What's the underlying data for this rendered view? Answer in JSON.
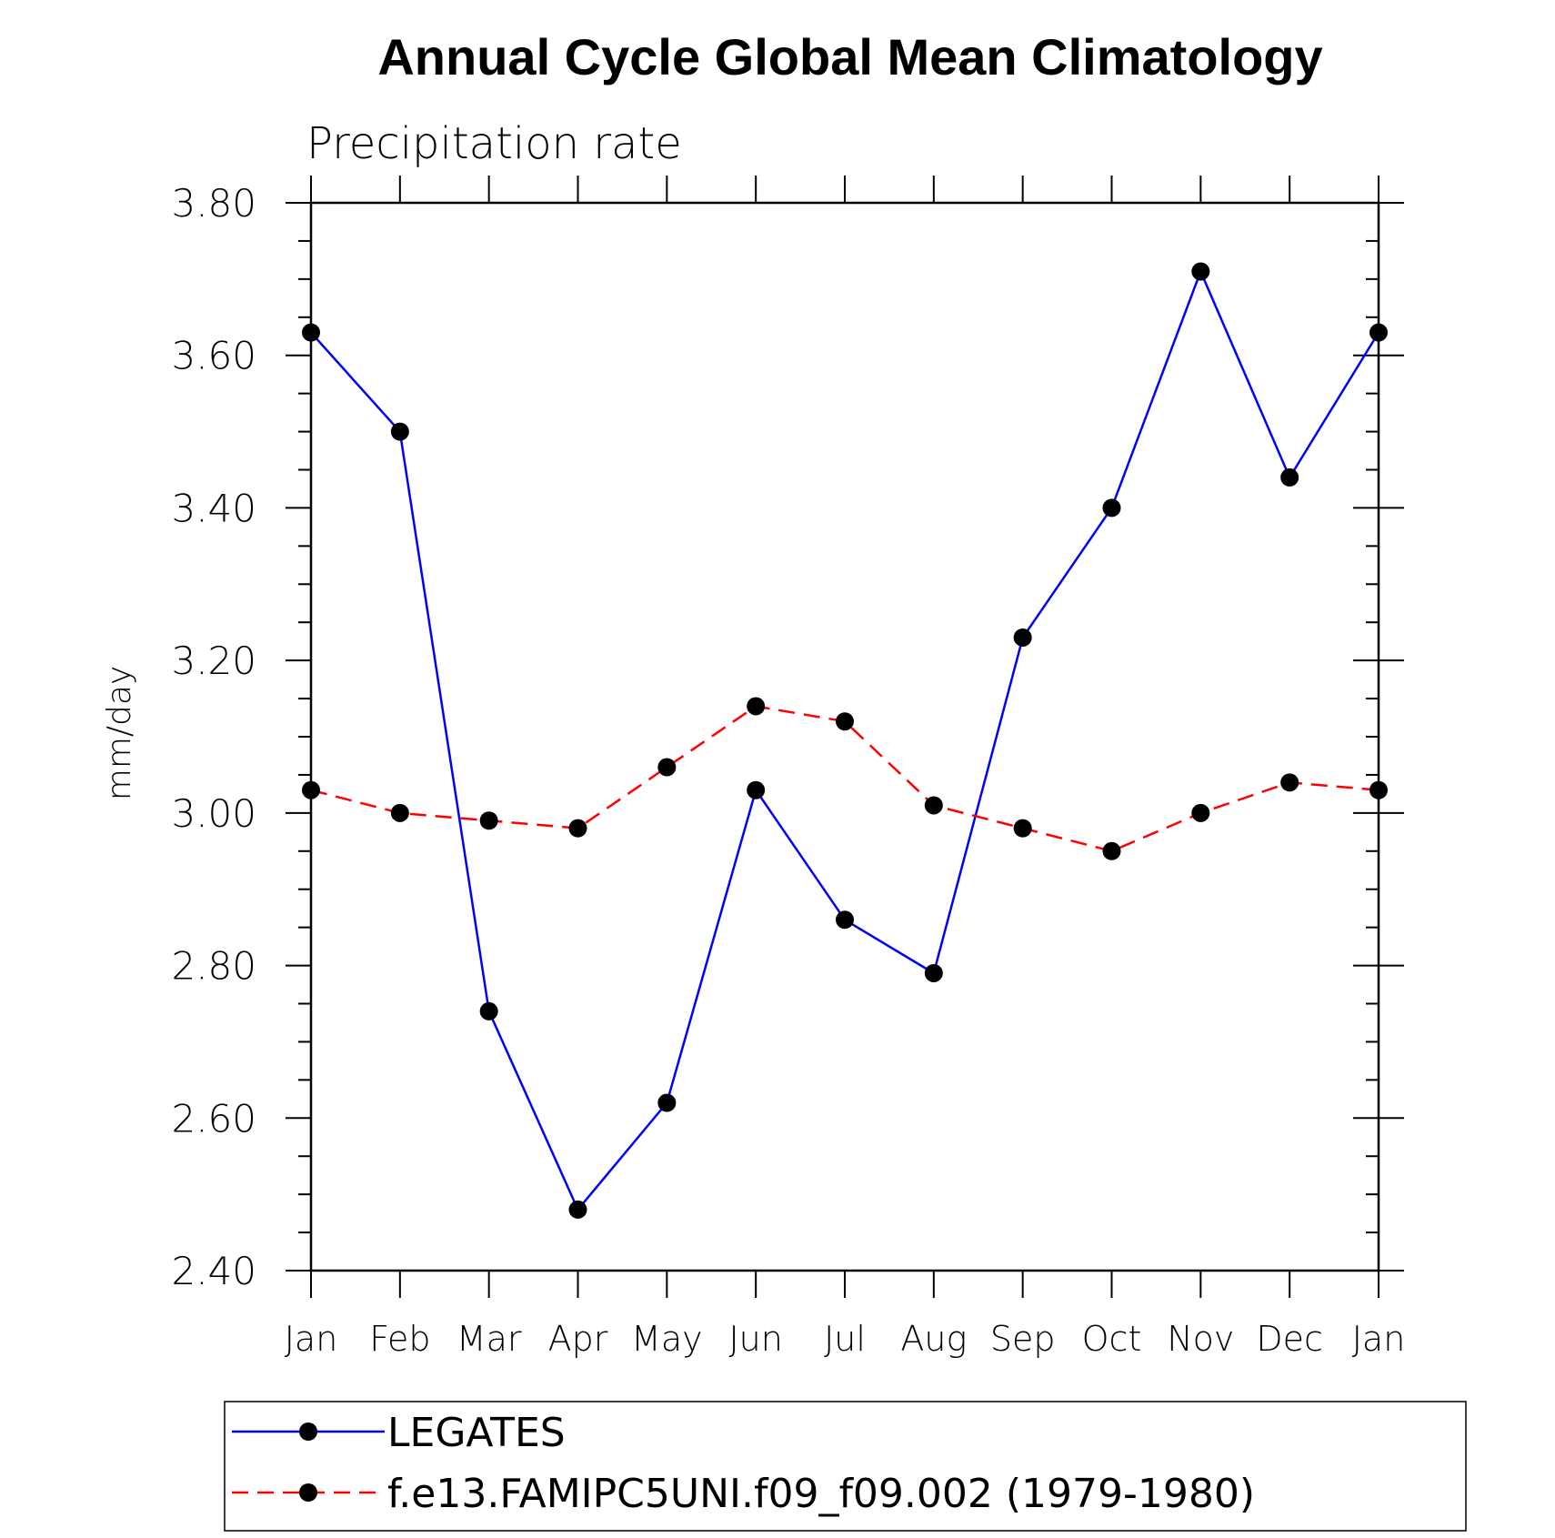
{
  "chart_data": {
    "type": "line",
    "title": "Annual Cycle Global Mean Climatology",
    "subtitle": "Precipitation rate",
    "xlabel": "",
    "ylabel": "mm/day",
    "categories": [
      "Jan",
      "Feb",
      "Mar",
      "Apr",
      "May",
      "Jun",
      "Jul",
      "Aug",
      "Sep",
      "Oct",
      "Nov",
      "Dec",
      "Jan"
    ],
    "ylim": [
      2.4,
      3.8
    ],
    "yticks": [
      "2.40",
      "2.60",
      "2.80",
      "3.00",
      "3.20",
      "3.40",
      "3.60",
      "3.80"
    ],
    "legend_position": "bottom",
    "series": [
      {
        "name": "LEGATES",
        "color": "#0000ff",
        "style": "solid",
        "marker": "filled-circle",
        "values": [
          3.63,
          3.5,
          2.74,
          2.48,
          2.62,
          3.03,
          2.86,
          2.79,
          3.23,
          3.4,
          3.71,
          3.44,
          3.63
        ]
      },
      {
        "name": "f.e13.FAMIPC5UNI.f09_f09.002 (1979-1980)",
        "color": "#ff0000",
        "style": "dashed",
        "marker": "filled-circle",
        "values": [
          3.03,
          3.0,
          2.99,
          2.98,
          3.06,
          3.14,
          3.12,
          3.01,
          2.98,
          2.95,
          3.0,
          3.04,
          3.03
        ]
      }
    ]
  }
}
